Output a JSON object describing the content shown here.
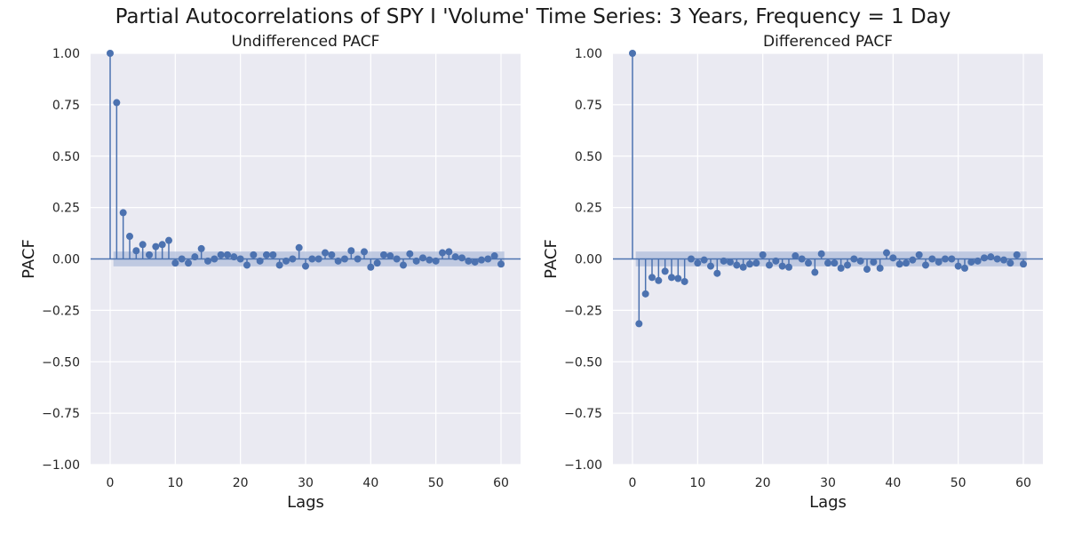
{
  "suptitle": "Partial Autocorrelations of SPY I 'Volume' Time Series: 3 Years, Frequency = 1 Day",
  "colors": {
    "background": "#eaeaf2",
    "grid": "#ffffff",
    "stem": "#4c72b0",
    "confidence_band": "#b0bddb"
  },
  "chart_data": [
    {
      "type": "stem",
      "title": "Undifferenced PACF",
      "xlabel": "Lags",
      "ylabel": "PACF",
      "xlim": [
        -3,
        63
      ],
      "ylim": [
        -1.0,
        1.0
      ],
      "xticks": [
        0,
        10,
        20,
        30,
        40,
        50,
        60
      ],
      "yticks": [
        -1.0,
        -0.75,
        -0.5,
        -0.25,
        0.0,
        0.25,
        0.5,
        0.75,
        1.0
      ],
      "ytick_labels": [
        "−1.00",
        "−0.75",
        "−0.50",
        "−0.25",
        "0.00",
        "0.25",
        "0.50",
        "0.75",
        "1.00"
      ],
      "confidence_interval": [
        -0.036,
        0.036
      ],
      "grid": true,
      "lags": [
        0,
        1,
        2,
        3,
        4,
        5,
        6,
        7,
        8,
        9,
        10,
        11,
        12,
        13,
        14,
        15,
        16,
        17,
        18,
        19,
        20,
        21,
        22,
        23,
        24,
        25,
        26,
        27,
        28,
        29,
        30,
        31,
        32,
        33,
        34,
        35,
        36,
        37,
        38,
        39,
        40,
        41,
        42,
        43,
        44,
        45,
        46,
        47,
        48,
        49,
        50,
        51,
        52,
        53,
        54,
        55,
        56,
        57,
        58,
        59,
        60
      ],
      "values": [
        1.0,
        0.76,
        0.225,
        0.11,
        0.04,
        0.07,
        0.02,
        0.06,
        0.07,
        0.09,
        -0.02,
        0.0,
        -0.02,
        0.01,
        0.05,
        -0.01,
        0.0,
        0.02,
        0.02,
        0.01,
        0.0,
        -0.03,
        0.02,
        -0.01,
        0.02,
        0.02,
        -0.03,
        -0.01,
        0.0,
        0.055,
        -0.035,
        0.0,
        0.0,
        0.03,
        0.02,
        -0.01,
        0.0,
        0.04,
        0.0,
        0.035,
        -0.04,
        -0.02,
        0.02,
        0.015,
        0.0,
        -0.03,
        0.025,
        -0.01,
        0.005,
        -0.005,
        -0.01,
        0.03,
        0.035,
        0.01,
        0.005,
        -0.01,
        -0.015,
        -0.005,
        0.0,
        0.015,
        -0.025
      ]
    },
    {
      "type": "stem",
      "title": "Differenced PACF",
      "xlabel": "Lags",
      "ylabel": "PACF",
      "xlim": [
        -3,
        63
      ],
      "ylim": [
        -1.0,
        1.0
      ],
      "xticks": [
        0,
        10,
        20,
        30,
        40,
        50,
        60
      ],
      "yticks": [
        -1.0,
        -0.75,
        -0.5,
        -0.25,
        0.0,
        0.25,
        0.5,
        0.75,
        1.0
      ],
      "ytick_labels": [
        "−1.00",
        "−0.75",
        "−0.50",
        "−0.25",
        "0.00",
        "0.25",
        "0.50",
        "0.75",
        "1.00"
      ],
      "confidence_interval": [
        -0.036,
        0.036
      ],
      "grid": true,
      "lags": [
        0,
        1,
        2,
        3,
        4,
        5,
        6,
        7,
        8,
        9,
        10,
        11,
        12,
        13,
        14,
        15,
        16,
        17,
        18,
        19,
        20,
        21,
        22,
        23,
        24,
        25,
        26,
        27,
        28,
        29,
        30,
        31,
        32,
        33,
        34,
        35,
        36,
        37,
        38,
        39,
        40,
        41,
        42,
        43,
        44,
        45,
        46,
        47,
        48,
        49,
        50,
        51,
        52,
        53,
        54,
        55,
        56,
        57,
        58,
        59,
        60
      ],
      "values": [
        1.0,
        -0.315,
        -0.17,
        -0.09,
        -0.105,
        -0.06,
        -0.09,
        -0.095,
        -0.11,
        0.0,
        -0.02,
        -0.005,
        -0.035,
        -0.07,
        -0.01,
        -0.015,
        -0.03,
        -0.04,
        -0.025,
        -0.02,
        0.02,
        -0.03,
        -0.01,
        -0.035,
        -0.04,
        0.015,
        0.0,
        -0.02,
        -0.065,
        0.025,
        -0.02,
        -0.02,
        -0.045,
        -0.03,
        0.0,
        -0.01,
        -0.05,
        -0.015,
        -0.045,
        0.03,
        0.005,
        -0.025,
        -0.02,
        -0.005,
        0.02,
        -0.03,
        0.0,
        -0.015,
        0.0,
        0.0,
        -0.035,
        -0.045,
        -0.015,
        -0.01,
        0.005,
        0.01,
        0.0,
        -0.005,
        -0.02,
        0.02,
        -0.025
      ]
    }
  ]
}
